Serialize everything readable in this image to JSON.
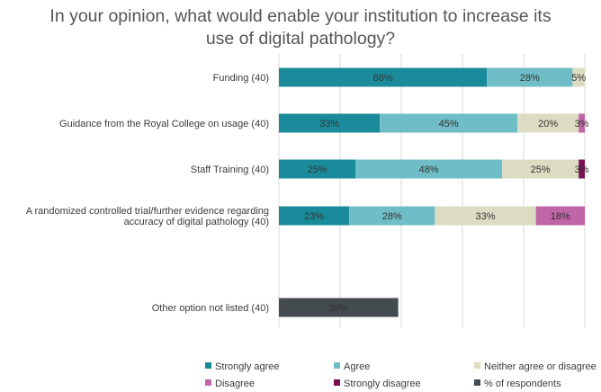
{
  "chart_data": {
    "type": "bar",
    "orientation": "horizontal",
    "stacked": true,
    "title": [
      "In your opinion, what would enable your institution to increase its",
      "use of digital pathology?"
    ],
    "xlim": [
      0,
      100
    ],
    "grid": true,
    "legend_position": "bottom",
    "categories": [
      [
        "Funding (40)"
      ],
      [
        "Guidance from the Royal College on usage (40)"
      ],
      [
        "Staff Training (40)"
      ],
      [
        "A randomized controlled trial/further evidence regarding",
        "accuracy of digital pathology (40)"
      ],
      [
        "Other option not listed (40)"
      ]
    ],
    "series": [
      {
        "name": "Strongly agree",
        "color": "#1a8b9b",
        "values": [
          68,
          33,
          25,
          23,
          0
        ],
        "labels": [
          "68%",
          "33%",
          "25%",
          "23%",
          ""
        ]
      },
      {
        "name": "Agree",
        "color": "#6fbdc6",
        "values": [
          28,
          45,
          48,
          28,
          0
        ],
        "labels": [
          "28%",
          "45%",
          "48%",
          "28%",
          ""
        ]
      },
      {
        "name": "Neither agree or disagree",
        "color": "#dcdcc2",
        "values": [
          5,
          20,
          25,
          33,
          0
        ],
        "labels": [
          "5%",
          "20%",
          "25%",
          "33%",
          ""
        ]
      },
      {
        "name": "Disagree",
        "color": "#c065a6",
        "values": [
          0,
          3,
          0,
          18,
          0
        ],
        "labels": [
          "",
          "3%",
          "",
          "18%",
          ""
        ]
      },
      {
        "name": "Strongly disagree",
        "color": "#7a0f52",
        "values": [
          0,
          0,
          3,
          0,
          0
        ],
        "labels": [
          "",
          "",
          "3%",
          "",
          ""
        ]
      },
      {
        "name": "% of respondents",
        "color": "#444b4f",
        "values": [
          0,
          0,
          0,
          0,
          39
        ],
        "labels": [
          "",
          "",
          "",
          "",
          "39%"
        ]
      }
    ]
  }
}
